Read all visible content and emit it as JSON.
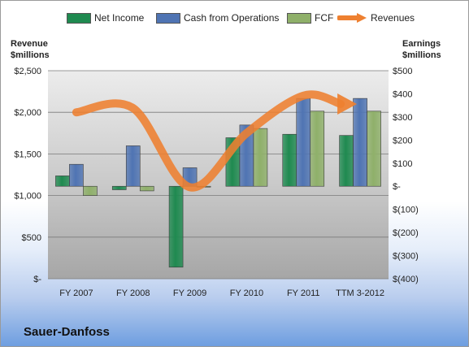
{
  "legend": {
    "net_income": "Net Income",
    "cash_from_operations": "Cash from Operations",
    "fcf": "FCF",
    "revenues": "Revenues"
  },
  "left_axis_title": [
    "Revenue",
    "$millions"
  ],
  "right_axis_title": [
    "Earnings",
    "$millions"
  ],
  "company": "Sauer-Danfoss",
  "colors": {
    "net_income": "#1f8a50",
    "cash_from_operations": "#4f74b3",
    "fcf": "#8fb06a",
    "revenues": "#ee8030"
  },
  "chart_data": {
    "type": "bar",
    "categories": [
      "FY 2007",
      "FY 2008",
      "FY 2009",
      "FY 2010",
      "FY 2011",
      "TTM 3-2012"
    ],
    "left_axis": {
      "label": "Revenue $millions",
      "range": [
        0,
        2500
      ],
      "ticks": [
        "$-",
        "$500",
        "$1,000",
        "$1,500",
        "$2,000",
        "$2,500"
      ],
      "tick_values": [
        0,
        500,
        1000,
        1500,
        2000,
        2500
      ]
    },
    "right_axis": {
      "label": "Earnings $millions",
      "range": [
        -400,
        500
      ],
      "ticks": [
        "$(400)",
        "$(300)",
        "$(200)",
        "$(100)",
        "$-",
        "$100",
        "$200",
        "$300",
        "$400",
        "$500"
      ],
      "tick_values": [
        -400,
        -300,
        -200,
        -100,
        0,
        100,
        200,
        300,
        400,
        500
      ]
    },
    "series": [
      {
        "name": "Net Income",
        "axis": "right",
        "values": [
          45,
          -15,
          -350,
          210,
          225,
          220
        ]
      },
      {
        "name": "Cash from Operations",
        "axis": "right",
        "values": [
          95,
          175,
          80,
          265,
          380,
          380
        ]
      },
      {
        "name": "FCF",
        "axis": "right",
        "values": [
          -40,
          -20,
          0,
          250,
          325,
          325
        ]
      },
      {
        "name": "Revenues",
        "type": "line",
        "axis": "left",
        "values": [
          2000,
          2050,
          1100,
          1750,
          2200,
          2100
        ]
      }
    ],
    "grid": true,
    "legend_position": "top"
  }
}
